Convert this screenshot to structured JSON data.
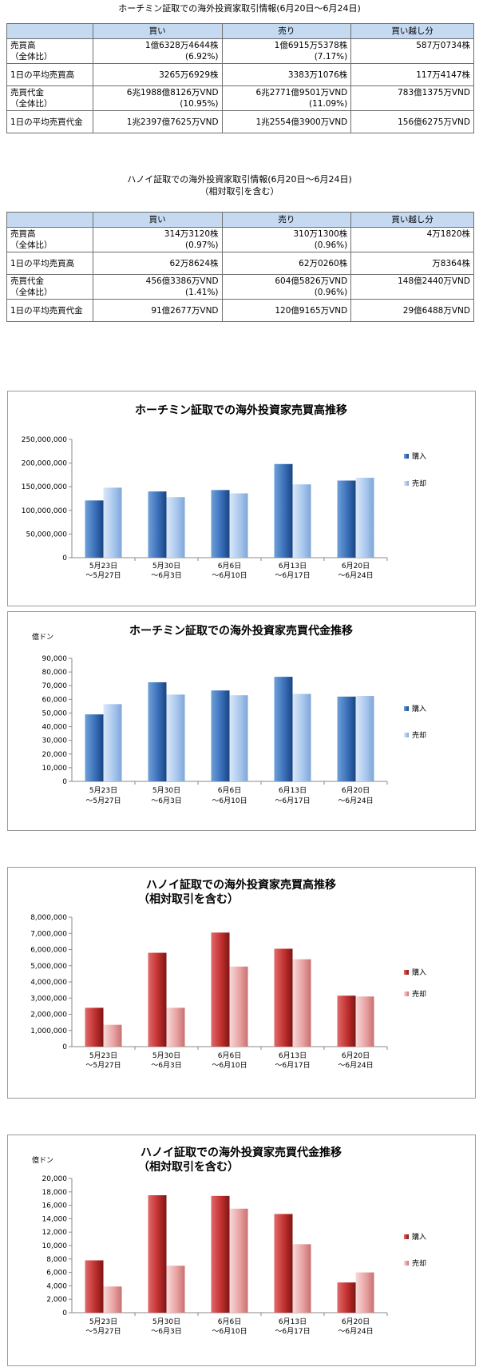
{
  "hcm_table": {
    "title": "ホーチミン証取での海外投資家取引情報(6月20日～6月24日)",
    "headers": [
      "",
      "買い",
      "売り",
      "買い越し分"
    ],
    "rows": [
      {
        "label1": "売買高",
        "label2": "（全体比）",
        "buy1": "1億6328万4644株",
        "buy2": "(6.92%)",
        "sell1": "1億6915万5378株",
        "sell2": "(7.17%)",
        "net": "587万0734株"
      },
      {
        "label1": "1日の平均売買高",
        "label2": "",
        "buy1": "3265万6929株",
        "buy2": "",
        "sell1": "3383万1076株",
        "sell2": "",
        "net": "117万4147株"
      },
      {
        "label1": "売買代金",
        "label2": "（全体比）",
        "buy1": "6兆1988億8126万VND",
        "buy2": "(10.95%)",
        "sell1": "6兆2771億9501万VND",
        "sell2": "(11.09%)",
        "net": "783億1375万VND"
      },
      {
        "label1": "1日の平均売買代金",
        "label2": "",
        "buy1": "1兆2397億7625万VND",
        "buy2": "",
        "sell1": "1兆2554億3900万VND",
        "sell2": "",
        "net": "156億6275万VND"
      }
    ]
  },
  "hn_table": {
    "title1": "ハノイ証取での海外投資家取引情報(6月20日～6月24日)",
    "title2": "（相対取引を含む）",
    "headers": [
      "",
      "買い",
      "売り",
      "買い越し分"
    ],
    "rows": [
      {
        "label1": "売買高",
        "label2": "（全体比）",
        "buy1": "314万3120株",
        "buy2": "(0.97%)",
        "sell1": "310万1300株",
        "sell2": "(0.96%)",
        "net": "4万1820株"
      },
      {
        "label1": "1日の平均売買高",
        "label2": "",
        "buy1": "62万8624株",
        "buy2": "",
        "sell1": "62万0260株",
        "sell2": "",
        "net": "万8364株"
      },
      {
        "label1": "売買代金",
        "label2": "（全体比）",
        "buy1": "456億3386万VND",
        "buy2": "(1.41%)",
        "sell1": "604億5826万VND",
        "sell2": "(0.96%)",
        "net": "148億2440万VND"
      },
      {
        "label1": "1日の平均売買代金",
        "label2": "",
        "buy1": "91億2677万VND",
        "buy2": "",
        "sell1": "120億9165万VND",
        "sell2": "",
        "net": "29億6488万VND"
      }
    ]
  },
  "chart_data": [
    {
      "type": "bar",
      "title": "ホーチミン証取での海外投資家売買高推移",
      "subtitle": "",
      "unit_label": "",
      "categories": [
        [
          "5月23日",
          "～5月27日"
        ],
        [
          "5月30日",
          "～6月3日"
        ],
        [
          "6月6日",
          "～6月10日"
        ],
        [
          "6月13日",
          "～6月17日"
        ],
        [
          "6月20日",
          "～6月24日"
        ]
      ],
      "series": [
        {
          "name": "購入",
          "values": [
            121000000,
            140000000,
            143000000,
            198000000,
            163000000
          ]
        },
        {
          "name": "売却",
          "values": [
            148000000,
            128000000,
            136000000,
            155000000,
            169000000
          ]
        }
      ],
      "ylim": [
        0,
        250000000
      ],
      "yticks": [
        0,
        50000000,
        100000000,
        150000000,
        200000000,
        250000000
      ],
      "ytick_labels": [
        "0",
        "50,000,000",
        "100,000,000",
        "150,000,000",
        "200,000,000",
        "250,000,000"
      ],
      "legend_position": "right",
      "grid": false,
      "colors": {
        "s0": [
          "#6fa0d9",
          "#3a70b9",
          "#1a4482"
        ],
        "s1": [
          "#dbe8f8",
          "#aac8ee",
          "#7ea6d8"
        ]
      }
    },
    {
      "type": "bar",
      "title": "ホーチミン証取での海外投資家売買代金推移",
      "subtitle": "",
      "unit_label": "億ドン",
      "categories": [
        [
          "5月23日",
          "～5月27日"
        ],
        [
          "5月30日",
          "～6月3日"
        ],
        [
          "6月6日",
          "～6月10日"
        ],
        [
          "6月13日",
          "～6月17日"
        ],
        [
          "6月20日",
          "～6月24日"
        ]
      ],
      "series": [
        {
          "name": "購入",
          "values": [
            49000,
            72500,
            66500,
            76500,
            62000
          ]
        },
        {
          "name": "売却",
          "values": [
            56500,
            63500,
            63000,
            64000,
            62500
          ]
        }
      ],
      "ylim": [
        0,
        90000
      ],
      "yticks": [
        0,
        10000,
        20000,
        30000,
        40000,
        50000,
        60000,
        70000,
        80000,
        90000
      ],
      "ytick_labels": [
        "0",
        "10,000",
        "20,000",
        "30,000",
        "40,000",
        "50,000",
        "60,000",
        "70,000",
        "80,000",
        "90,000"
      ],
      "legend_position": "right",
      "grid": false,
      "colors": {
        "s0": [
          "#6fa0d9",
          "#3a70b9",
          "#1a4482"
        ],
        "s1": [
          "#dbe8f8",
          "#aac8ee",
          "#7ea6d8"
        ]
      }
    },
    {
      "type": "bar",
      "title": "ハノイ証取での海外投資家売買高推移",
      "subtitle": "（相対取引を含む）",
      "unit_label": "",
      "categories": [
        [
          "5月23日",
          "～5月27日"
        ],
        [
          "5月30日",
          "～6月3日"
        ],
        [
          "6月6日",
          "～6月10日"
        ],
        [
          "6月13日",
          "～6月17日"
        ],
        [
          "6月20日",
          "～6月24日"
        ]
      ],
      "series": [
        {
          "name": "購入",
          "values": [
            2400000,
            5800000,
            7050000,
            6050000,
            3150000
          ]
        },
        {
          "name": "売却",
          "values": [
            1350000,
            2400000,
            4950000,
            5400000,
            3100000
          ]
        }
      ],
      "ylim": [
        0,
        8000000
      ],
      "yticks": [
        0,
        1000000,
        2000000,
        3000000,
        4000000,
        5000000,
        6000000,
        7000000,
        8000000
      ],
      "ytick_labels": [
        "0",
        "1,000,000",
        "2,000,000",
        "3,000,000",
        "4,000,000",
        "5,000,000",
        "6,000,000",
        "7,000,000",
        "8,000,000"
      ],
      "legend_position": "right",
      "grid": false,
      "colors": {
        "s0": [
          "#e06a6a",
          "#c0302f",
          "#7e1514"
        ],
        "s1": [
          "#f8dada",
          "#e8a3a3",
          "#c87070"
        ]
      }
    },
    {
      "type": "bar",
      "title": "ハノイ証取での海外投資家売買代金推移",
      "subtitle": "（相対取引を含む）",
      "unit_label": "億ドン",
      "categories": [
        [
          "5月23日",
          "～5月27日"
        ],
        [
          "5月30日",
          "～6月3日"
        ],
        [
          "6月6日",
          "～6月10日"
        ],
        [
          "6月13日",
          "～6月17日"
        ],
        [
          "6月20日",
          "～6月24日"
        ]
      ],
      "series": [
        {
          "name": "購入",
          "values": [
            7800,
            17500,
            17400,
            14700,
            4500
          ]
        },
        {
          "name": "売却",
          "values": [
            3900,
            7000,
            15500,
            10200,
            6000
          ]
        }
      ],
      "ylim": [
        0,
        20000
      ],
      "yticks": [
        0,
        2000,
        4000,
        6000,
        8000,
        10000,
        12000,
        14000,
        16000,
        18000,
        20000
      ],
      "ytick_labels": [
        "0",
        "2,000",
        "4,000",
        "6,000",
        "8,000",
        "10,000",
        "12,000",
        "14,000",
        "16,000",
        "18,000",
        "20,000"
      ],
      "legend_position": "right",
      "grid": false,
      "colors": {
        "s0": [
          "#e06a6a",
          "#c0302f",
          "#7e1514"
        ],
        "s1": [
          "#f8dada",
          "#e8a3a3",
          "#c87070"
        ]
      }
    }
  ]
}
